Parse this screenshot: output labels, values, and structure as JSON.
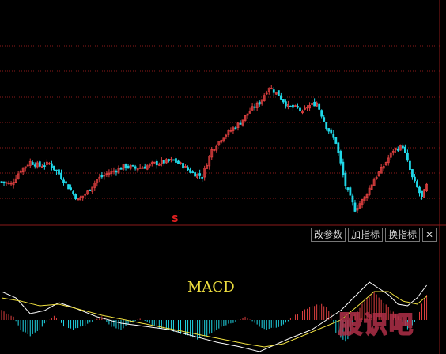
{
  "toolbar": {
    "buttons": [
      {
        "id": "modify-params",
        "label": "改参数"
      },
      {
        "id": "add-indicator",
        "label": "加指标"
      },
      {
        "id": "switch-indicator",
        "label": "换指标"
      }
    ],
    "close_glyph": "✕"
  },
  "signal_marker": "S",
  "indicator_label": "MACD",
  "watermark": "股识吧",
  "colors": {
    "up": "#e04040",
    "down": "#20d8e8",
    "dif": "#ffffff",
    "dea": "#f0e040",
    "grid": "#8b1a1a",
    "axis": "#8b1a1a"
  },
  "chart_data": [
    {
      "type": "candlestick",
      "title": "",
      "y_range": [
        0,
        280
      ],
      "grid": true,
      "close_profile": [
        [
          0,
          45
        ],
        [
          4,
          42
        ],
        [
          8,
          60
        ],
        [
          12,
          70
        ],
        [
          16,
          65
        ],
        [
          20,
          68
        ],
        [
          24,
          55
        ],
        [
          28,
          38
        ],
        [
          32,
          22
        ],
        [
          36,
          32
        ],
        [
          40,
          48
        ],
        [
          44,
          55
        ],
        [
          48,
          60
        ],
        [
          52,
          65
        ],
        [
          56,
          62
        ],
        [
          60,
          64
        ],
        [
          64,
          68
        ],
        [
          68,
          70
        ],
        [
          72,
          72
        ],
        [
          76,
          65
        ],
        [
          80,
          56
        ],
        [
          84,
          52
        ],
        [
          88,
          85
        ],
        [
          92,
          100
        ],
        [
          96,
          110
        ],
        [
          100,
          120
        ],
        [
          104,
          135
        ],
        [
          108,
          145
        ],
        [
          112,
          165
        ],
        [
          116,
          155
        ],
        [
          120,
          140
        ],
        [
          124,
          138
        ],
        [
          126,
          132
        ],
        [
          128,
          140
        ],
        [
          132,
          145
        ],
        [
          136,
          115
        ],
        [
          140,
          95
        ],
        [
          144,
          40
        ],
        [
          148,
          10
        ],
        [
          152,
          25
        ],
        [
          156,
          48
        ],
        [
          160,
          65
        ],
        [
          164,
          85
        ],
        [
          168,
          90
        ],
        [
          172,
          50
        ],
        [
          176,
          25
        ],
        [
          178,
          40
        ]
      ]
    },
    {
      "type": "bar+line",
      "name": "MACD",
      "y_range": [
        -1.2,
        1.2
      ],
      "grid": false,
      "hist_profile": [
        [
          0,
          0.3
        ],
        [
          5,
          0.1
        ],
        [
          8,
          -0.3
        ],
        [
          12,
          -0.5
        ],
        [
          16,
          -0.3
        ],
        [
          18,
          -0.1
        ],
        [
          20,
          0.0
        ],
        [
          22,
          0.15
        ],
        [
          26,
          -0.2
        ],
        [
          30,
          -0.3
        ],
        [
          34,
          -0.2
        ],
        [
          38,
          -0.05
        ],
        [
          42,
          0.1
        ],
        [
          46,
          -0.2
        ],
        [
          50,
          -0.3
        ],
        [
          54,
          -0.1
        ],
        [
          58,
          0.05
        ],
        [
          62,
          -0.1
        ],
        [
          66,
          -0.25
        ],
        [
          70,
          -0.3
        ],
        [
          74,
          -0.4
        ],
        [
          78,
          -0.5
        ],
        [
          82,
          -0.6
        ],
        [
          86,
          -0.5
        ],
        [
          90,
          -0.3
        ],
        [
          94,
          -0.15
        ],
        [
          98,
          -0.05
        ],
        [
          102,
          0.1
        ],
        [
          106,
          -0.1
        ],
        [
          110,
          -0.3
        ],
        [
          114,
          -0.25
        ],
        [
          118,
          -0.15
        ],
        [
          122,
          0.1
        ],
        [
          126,
          0.3
        ],
        [
          130,
          0.45
        ],
        [
          134,
          0.5
        ],
        [
          136,
          0.4
        ],
        [
          138,
          0.2
        ],
        [
          140,
          -0.4
        ],
        [
          144,
          -0.7
        ],
        [
          146,
          -0.5
        ],
        [
          148,
          0.2
        ],
        [
          152,
          0.6
        ],
        [
          156,
          0.9
        ],
        [
          158,
          0.7
        ],
        [
          162,
          0.4
        ],
        [
          166,
          0.1
        ],
        [
          170,
          -0.3
        ],
        [
          174,
          0.0
        ],
        [
          176,
          0.5
        ],
        [
          178,
          0.8
        ]
      ],
      "dif_profile": [
        [
          0,
          0.9
        ],
        [
          6,
          0.7
        ],
        [
          12,
          0.2
        ],
        [
          18,
          0.3
        ],
        [
          24,
          0.55
        ],
        [
          30,
          0.4
        ],
        [
          40,
          0.1
        ],
        [
          50,
          -0.1
        ],
        [
          60,
          -0.2
        ],
        [
          70,
          -0.3
        ],
        [
          80,
          -0.5
        ],
        [
          90,
          -0.7
        ],
        [
          100,
          -0.85
        ],
        [
          108,
          -1.0
        ],
        [
          114,
          -0.8
        ],
        [
          120,
          -0.6
        ],
        [
          130,
          -0.3
        ],
        [
          136,
          0.0
        ],
        [
          142,
          0.3
        ],
        [
          150,
          0.9
        ],
        [
          154,
          1.2
        ],
        [
          158,
          1.0
        ],
        [
          162,
          0.8
        ],
        [
          166,
          0.5
        ],
        [
          170,
          0.45
        ],
        [
          174,
          0.7
        ],
        [
          178,
          1.1
        ]
      ],
      "dea_profile": [
        [
          0,
          0.7
        ],
        [
          8,
          0.6
        ],
        [
          16,
          0.45
        ],
        [
          24,
          0.5
        ],
        [
          32,
          0.35
        ],
        [
          42,
          0.15
        ],
        [
          52,
          0.0
        ],
        [
          62,
          -0.15
        ],
        [
          72,
          -0.3
        ],
        [
          82,
          -0.45
        ],
        [
          92,
          -0.6
        ],
        [
          102,
          -0.75
        ],
        [
          110,
          -0.85
        ],
        [
          118,
          -0.75
        ],
        [
          126,
          -0.5
        ],
        [
          134,
          -0.25
        ],
        [
          142,
          0.0
        ],
        [
          150,
          0.5
        ],
        [
          156,
          0.9
        ],
        [
          162,
          0.9
        ],
        [
          168,
          0.6
        ],
        [
          174,
          0.5
        ],
        [
          178,
          0.75
        ]
      ]
    }
  ]
}
